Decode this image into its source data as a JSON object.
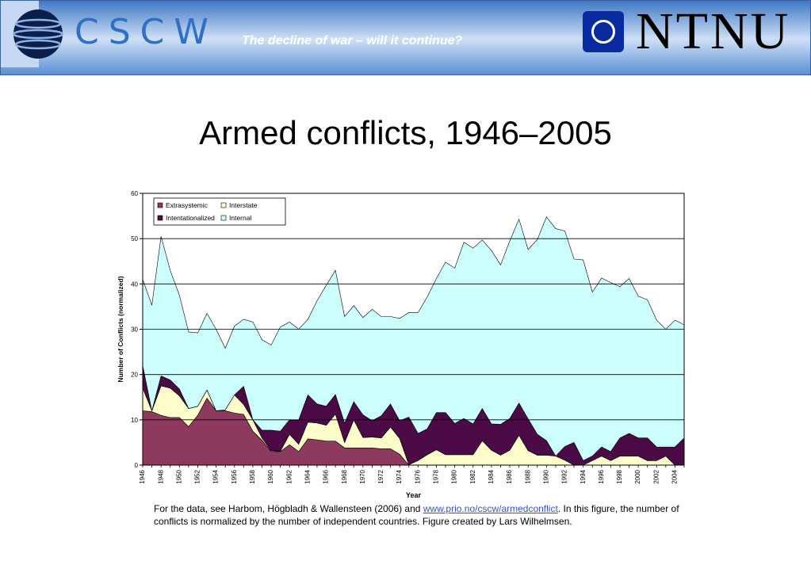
{
  "header": {
    "brand_left": "CSCW",
    "tagline": "The decline of war – will it continue?",
    "brand_right": "NTNU",
    "logos": [
      "globe-logo",
      "ntnu-square-logo"
    ]
  },
  "slide": {
    "title": "Armed conflicts, 1946–2005"
  },
  "caption": {
    "before_link": "For the data, see Harbom, Högbladh & Wallensteen (2006) and ",
    "link": "www.prio.no/cscw/armedconflict",
    "after_link": ". In this figure, the number of conflicts is normalized by the number of independent countries. Figure created by Lars Wilhelmsen."
  },
  "chart_data": {
    "type": "area",
    "stacked": true,
    "xlabel": "Year",
    "ylabel": "Number of Conflicts (normalized)",
    "ylim": [
      0,
      60
    ],
    "yticks": [
      0,
      10,
      20,
      30,
      40,
      50,
      60
    ],
    "xlim": [
      1946,
      2005
    ],
    "xticks": [
      1946,
      1948,
      1950,
      1952,
      1954,
      1956,
      1958,
      1960,
      1962,
      1964,
      1966,
      1968,
      1970,
      1972,
      1974,
      1976,
      1978,
      1980,
      1982,
      1984,
      1986,
      1988,
      1990,
      1992,
      1994,
      1996,
      1998,
      2000,
      2002,
      2004
    ],
    "grid": "horizontal",
    "legend": "top-left",
    "colors": {
      "Extrasystemic": "#8e3a5e",
      "Interstate": "#fdfdcc",
      "Intentationalized": "#4b0a46",
      "Internal": "#ccfefe",
      "frame": "#000000",
      "background": "#ffffff"
    },
    "x": [
      1946,
      1947,
      1948,
      1949,
      1950,
      1951,
      1952,
      1953,
      1954,
      1955,
      1956,
      1957,
      1958,
      1959,
      1960,
      1961,
      1962,
      1963,
      1964,
      1965,
      1966,
      1967,
      1968,
      1969,
      1970,
      1971,
      1972,
      1973,
      1974,
      1975,
      1976,
      1977,
      1978,
      1979,
      1980,
      1981,
      1982,
      1983,
      1984,
      1985,
      1986,
      1987,
      1988,
      1989,
      1990,
      1991,
      1992,
      1993,
      1994,
      1995,
      1996,
      1997,
      1998,
      1999,
      2000,
      2001,
      2002,
      2003,
      2004,
      2005
    ],
    "series": [
      {
        "name": "Extrasystemic",
        "values": [
          12,
          11.8,
          11,
          10.5,
          10.5,
          8.5,
          11,
          14.8,
          12,
          12,
          11.5,
          11.2,
          7.5,
          5.5,
          3,
          3,
          4.5,
          3,
          5.8,
          5.6,
          5.3,
          5.3,
          3.8,
          3.8,
          3.8,
          3.8,
          3.6,
          3.6,
          2.4,
          0,
          0,
          0,
          0,
          0,
          0,
          0,
          0,
          0,
          0,
          0,
          0,
          0,
          0,
          0,
          0,
          0,
          0,
          0,
          0,
          0,
          0,
          0,
          0,
          0,
          0,
          0,
          0,
          0,
          0,
          0
        ]
      },
      {
        "name": "Interstate",
        "values": [
          5,
          0.2,
          6.5,
          6.5,
          4.8,
          4,
          2,
          1.8,
          0,
          0.2,
          4,
          2.2,
          2.5,
          0.5,
          0.2,
          0.1,
          2.3,
          1.6,
          3.7,
          3.7,
          3.5,
          6,
          1.2,
          6.2,
          2.3,
          2.4,
          2.4,
          4.8,
          3.5,
          0.1,
          1,
          2.3,
          3.4,
          2.3,
          2.3,
          2.3,
          2.3,
          5.4,
          3.3,
          2.2,
          3.3,
          6.6,
          3.2,
          2.2,
          2.2,
          2,
          1.1,
          0,
          0,
          1,
          2,
          1,
          2,
          2,
          2,
          1,
          1,
          2,
          0,
          0
        ]
      },
      {
        "name": "Intentationalized",
        "values": [
          5,
          0,
          2.2,
          1.8,
          1.5,
          0,
          0,
          0,
          0,
          0,
          0,
          4,
          0,
          1.7,
          4.5,
          4.4,
          3.2,
          5.4,
          6,
          4.2,
          4.2,
          4.3,
          4.3,
          4,
          5,
          3.6,
          4.9,
          5.1,
          3.9,
          10.5,
          6,
          5.7,
          8.2,
          9.3,
          6.9,
          8,
          6.8,
          7.1,
          5.8,
          6.8,
          7,
          7.1,
          7,
          4.6,
          3.2,
          0,
          3,
          5,
          1,
          1,
          2,
          2,
          4,
          5,
          4,
          5,
          3,
          2,
          4,
          6
        ]
      },
      {
        "name": "Internal",
        "values": [
          19,
          23.3,
          30.8,
          24.2,
          20.7,
          16.9,
          16.2,
          16.9,
          18,
          13.6,
          15.2,
          14.8,
          21.6,
          20,
          18.8,
          23,
          21.6,
          20,
          16.7,
          22.8,
          26.7,
          27.4,
          23.5,
          21.2,
          21.5,
          24.6,
          21.9,
          19.3,
          22.6,
          23.1,
          26.7,
          29.1,
          29.6,
          33.2,
          34.3,
          38.9,
          38.8,
          37.2,
          38.3,
          35.2,
          39.2,
          40.6,
          37.4,
          43,
          49.4,
          50.2,
          47.6,
          40.5,
          44.3,
          36.2,
          37.3,
          37.3,
          33.4,
          34.2,
          31.3,
          30.5,
          28,
          26,
          28,
          25
        ]
      }
    ]
  }
}
